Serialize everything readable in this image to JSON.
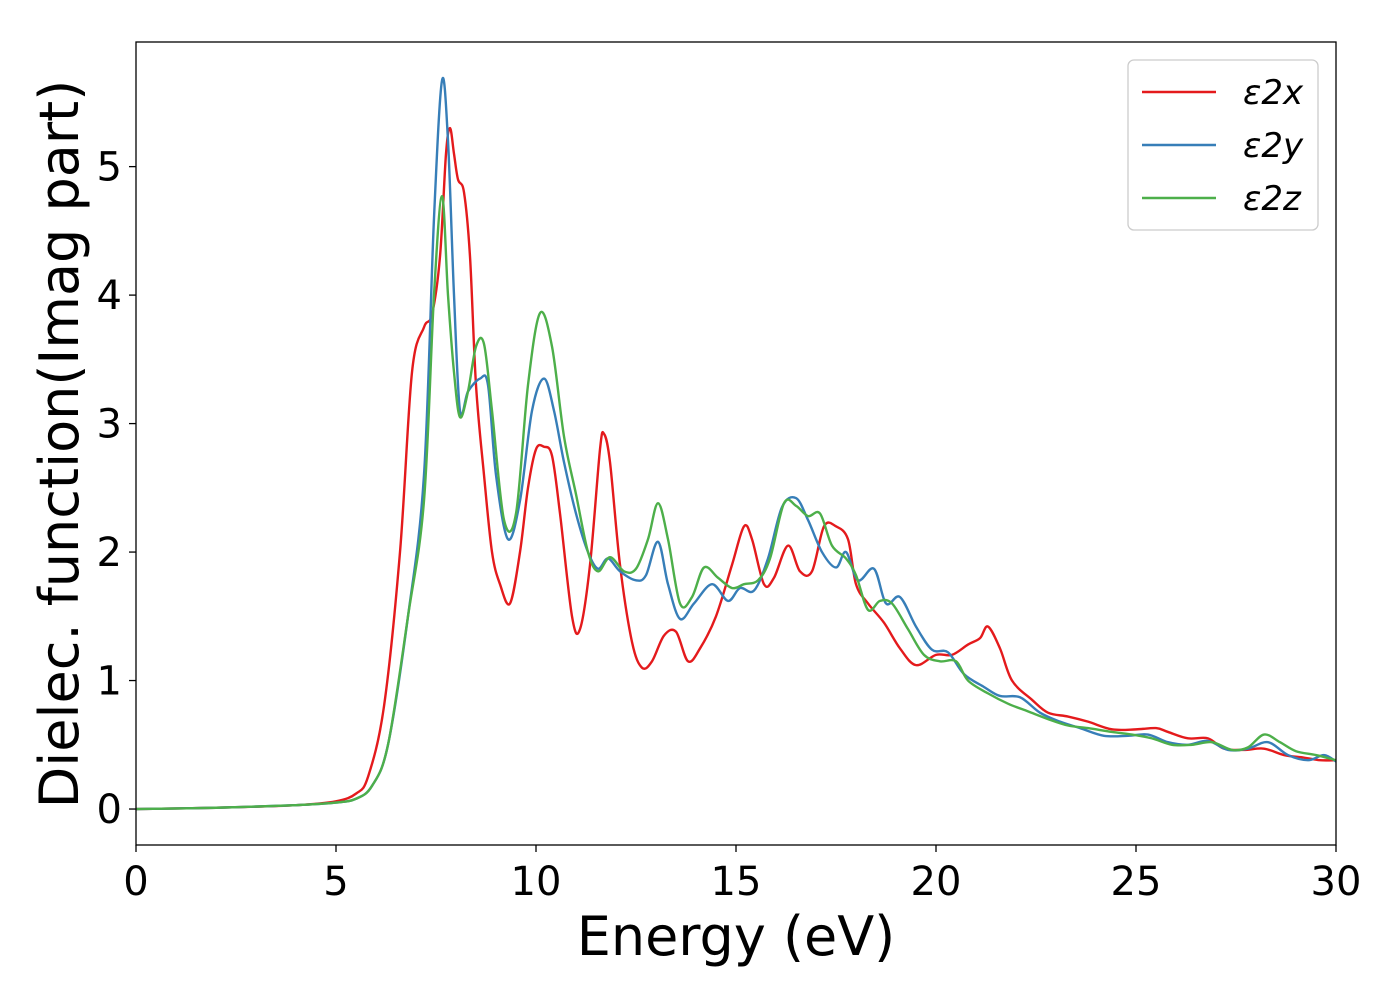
{
  "chart_data": {
    "type": "line",
    "xlabel": "Energy (eV)",
    "ylabel": "Dielec. function(Imag part)",
    "xlim": [
      0,
      30
    ],
    "ylim": [
      -0.28,
      5.97
    ],
    "xticks": [
      0,
      5,
      10,
      15,
      20,
      25,
      30
    ],
    "yticks": [
      0,
      1,
      2,
      3,
      4,
      5
    ],
    "grid": false,
    "legend_position": "top-right",
    "series": [
      {
        "name": "ε2x",
        "color": "#e41a1c",
        "points": [
          [
            0,
            0.0
          ],
          [
            2,
            0.01
          ],
          [
            4,
            0.03
          ],
          [
            5,
            0.06
          ],
          [
            5.5,
            0.12
          ],
          [
            5.8,
            0.25
          ],
          [
            6.2,
            0.8
          ],
          [
            6.6,
            2.0
          ],
          [
            6.9,
            3.4
          ],
          [
            7.2,
            3.75
          ],
          [
            7.4,
            3.85
          ],
          [
            7.6,
            4.3
          ],
          [
            7.75,
            5.1
          ],
          [
            7.85,
            5.3
          ],
          [
            7.95,
            5.1
          ],
          [
            8.05,
            4.9
          ],
          [
            8.2,
            4.8
          ],
          [
            8.35,
            4.3
          ],
          [
            8.5,
            3.3
          ],
          [
            8.7,
            2.6
          ],
          [
            8.9,
            2.0
          ],
          [
            9.1,
            1.75
          ],
          [
            9.35,
            1.6
          ],
          [
            9.6,
            2.0
          ],
          [
            9.8,
            2.5
          ],
          [
            10.0,
            2.8
          ],
          [
            10.2,
            2.82
          ],
          [
            10.4,
            2.75
          ],
          [
            10.6,
            2.3
          ],
          [
            10.9,
            1.5
          ],
          [
            11.1,
            1.4
          ],
          [
            11.35,
            1.9
          ],
          [
            11.6,
            2.8
          ],
          [
            11.7,
            2.92
          ],
          [
            11.85,
            2.7
          ],
          [
            12.1,
            1.9
          ],
          [
            12.4,
            1.3
          ],
          [
            12.65,
            1.1
          ],
          [
            12.9,
            1.15
          ],
          [
            13.2,
            1.35
          ],
          [
            13.5,
            1.38
          ],
          [
            13.8,
            1.15
          ],
          [
            14.1,
            1.25
          ],
          [
            14.5,
            1.5
          ],
          [
            14.9,
            1.9
          ],
          [
            15.2,
            2.2
          ],
          [
            15.4,
            2.1
          ],
          [
            15.7,
            1.75
          ],
          [
            15.95,
            1.8
          ],
          [
            16.3,
            2.05
          ],
          [
            16.6,
            1.85
          ],
          [
            16.9,
            1.85
          ],
          [
            17.2,
            2.2
          ],
          [
            17.5,
            2.2
          ],
          [
            17.8,
            2.1
          ],
          [
            18.0,
            1.75
          ],
          [
            18.3,
            1.6
          ],
          [
            18.7,
            1.45
          ],
          [
            19.1,
            1.25
          ],
          [
            19.5,
            1.12
          ],
          [
            20.0,
            1.2
          ],
          [
            20.4,
            1.2
          ],
          [
            20.8,
            1.28
          ],
          [
            21.1,
            1.33
          ],
          [
            21.3,
            1.42
          ],
          [
            21.6,
            1.25
          ],
          [
            21.9,
            1.0
          ],
          [
            22.4,
            0.85
          ],
          [
            22.8,
            0.75
          ],
          [
            23.3,
            0.72
          ],
          [
            23.8,
            0.68
          ],
          [
            24.4,
            0.62
          ],
          [
            25.0,
            0.62
          ],
          [
            25.5,
            0.63
          ],
          [
            25.8,
            0.6
          ],
          [
            26.3,
            0.55
          ],
          [
            26.8,
            0.55
          ],
          [
            27.2,
            0.47
          ],
          [
            27.7,
            0.46
          ],
          [
            28.2,
            0.47
          ],
          [
            28.7,
            0.42
          ],
          [
            29.2,
            0.4
          ],
          [
            29.6,
            0.38
          ],
          [
            30,
            0.38
          ]
        ]
      },
      {
        "name": "ε2y",
        "color": "#377eb8",
        "points": [
          [
            0,
            0.0
          ],
          [
            2,
            0.01
          ],
          [
            4,
            0.03
          ],
          [
            5,
            0.05
          ],
          [
            5.5,
            0.08
          ],
          [
            5.9,
            0.18
          ],
          [
            6.3,
            0.5
          ],
          [
            6.8,
            1.5
          ],
          [
            7.2,
            2.6
          ],
          [
            7.45,
            4.6
          ],
          [
            7.65,
            5.67
          ],
          [
            7.8,
            5.2
          ],
          [
            7.95,
            4.0
          ],
          [
            8.1,
            3.1
          ],
          [
            8.3,
            3.25
          ],
          [
            8.6,
            3.35
          ],
          [
            8.8,
            3.3
          ],
          [
            9.0,
            2.6
          ],
          [
            9.3,
            2.1
          ],
          [
            9.6,
            2.4
          ],
          [
            9.9,
            3.1
          ],
          [
            10.2,
            3.35
          ],
          [
            10.45,
            3.1
          ],
          [
            10.7,
            2.7
          ],
          [
            11.0,
            2.3
          ],
          [
            11.3,
            2.0
          ],
          [
            11.55,
            1.87
          ],
          [
            11.8,
            1.95
          ],
          [
            12.1,
            1.85
          ],
          [
            12.5,
            1.78
          ],
          [
            12.75,
            1.82
          ],
          [
            13.05,
            2.08
          ],
          [
            13.3,
            1.75
          ],
          [
            13.6,
            1.48
          ],
          [
            13.95,
            1.6
          ],
          [
            14.4,
            1.75
          ],
          [
            14.8,
            1.62
          ],
          [
            15.1,
            1.72
          ],
          [
            15.45,
            1.7
          ],
          [
            15.8,
            1.95
          ],
          [
            16.15,
            2.35
          ],
          [
            16.5,
            2.42
          ],
          [
            16.8,
            2.25
          ],
          [
            17.15,
            2.0
          ],
          [
            17.5,
            1.88
          ],
          [
            17.75,
            2.0
          ],
          [
            18.05,
            1.78
          ],
          [
            18.45,
            1.87
          ],
          [
            18.75,
            1.6
          ],
          [
            19.1,
            1.65
          ],
          [
            19.5,
            1.42
          ],
          [
            19.9,
            1.24
          ],
          [
            20.3,
            1.22
          ],
          [
            20.7,
            1.05
          ],
          [
            21.2,
            0.95
          ],
          [
            21.6,
            0.88
          ],
          [
            22.1,
            0.87
          ],
          [
            22.6,
            0.75
          ],
          [
            23.1,
            0.68
          ],
          [
            23.6,
            0.63
          ],
          [
            24.2,
            0.57
          ],
          [
            24.8,
            0.57
          ],
          [
            25.3,
            0.58
          ],
          [
            25.8,
            0.52
          ],
          [
            26.3,
            0.5
          ],
          [
            26.8,
            0.53
          ],
          [
            27.3,
            0.46
          ],
          [
            27.8,
            0.47
          ],
          [
            28.3,
            0.52
          ],
          [
            28.8,
            0.42
          ],
          [
            29.3,
            0.38
          ],
          [
            29.7,
            0.42
          ],
          [
            30,
            0.37
          ]
        ]
      },
      {
        "name": "ε2z",
        "color": "#4daf4a",
        "points": [
          [
            0,
            0.0
          ],
          [
            2,
            0.01
          ],
          [
            4,
            0.03
          ],
          [
            5,
            0.05
          ],
          [
            5.5,
            0.08
          ],
          [
            5.9,
            0.18
          ],
          [
            6.3,
            0.5
          ],
          [
            6.8,
            1.5
          ],
          [
            7.2,
            2.4
          ],
          [
            7.45,
            4.0
          ],
          [
            7.65,
            4.77
          ],
          [
            7.8,
            4.0
          ],
          [
            7.95,
            3.4
          ],
          [
            8.1,
            3.05
          ],
          [
            8.3,
            3.25
          ],
          [
            8.5,
            3.6
          ],
          [
            8.7,
            3.62
          ],
          [
            8.9,
            3.1
          ],
          [
            9.2,
            2.25
          ],
          [
            9.5,
            2.3
          ],
          [
            9.8,
            3.3
          ],
          [
            10.1,
            3.86
          ],
          [
            10.4,
            3.6
          ],
          [
            10.7,
            2.9
          ],
          [
            11.0,
            2.45
          ],
          [
            11.3,
            2.0
          ],
          [
            11.55,
            1.85
          ],
          [
            11.85,
            1.96
          ],
          [
            12.2,
            1.85
          ],
          [
            12.5,
            1.87
          ],
          [
            12.8,
            2.1
          ],
          [
            13.05,
            2.38
          ],
          [
            13.3,
            2.1
          ],
          [
            13.6,
            1.6
          ],
          [
            13.9,
            1.65
          ],
          [
            14.2,
            1.88
          ],
          [
            14.55,
            1.8
          ],
          [
            14.9,
            1.72
          ],
          [
            15.2,
            1.75
          ],
          [
            15.55,
            1.78
          ],
          [
            15.85,
            1.95
          ],
          [
            16.2,
            2.38
          ],
          [
            16.5,
            2.36
          ],
          [
            16.8,
            2.28
          ],
          [
            17.1,
            2.3
          ],
          [
            17.4,
            2.05
          ],
          [
            17.75,
            1.95
          ],
          [
            18.0,
            1.82
          ],
          [
            18.3,
            1.55
          ],
          [
            18.6,
            1.62
          ],
          [
            18.9,
            1.6
          ],
          [
            19.3,
            1.4
          ],
          [
            19.7,
            1.2
          ],
          [
            20.1,
            1.15
          ],
          [
            20.5,
            1.15
          ],
          [
            20.8,
            1.0
          ],
          [
            21.3,
            0.9
          ],
          [
            21.8,
            0.82
          ],
          [
            22.3,
            0.76
          ],
          [
            22.8,
            0.7
          ],
          [
            23.3,
            0.65
          ],
          [
            23.8,
            0.63
          ],
          [
            24.4,
            0.6
          ],
          [
            24.9,
            0.58
          ],
          [
            25.4,
            0.55
          ],
          [
            25.9,
            0.5
          ],
          [
            26.4,
            0.5
          ],
          [
            26.9,
            0.52
          ],
          [
            27.4,
            0.46
          ],
          [
            27.8,
            0.48
          ],
          [
            28.2,
            0.58
          ],
          [
            28.6,
            0.52
          ],
          [
            29.0,
            0.45
          ],
          [
            29.5,
            0.42
          ],
          [
            30,
            0.38
          ]
        ]
      }
    ]
  }
}
